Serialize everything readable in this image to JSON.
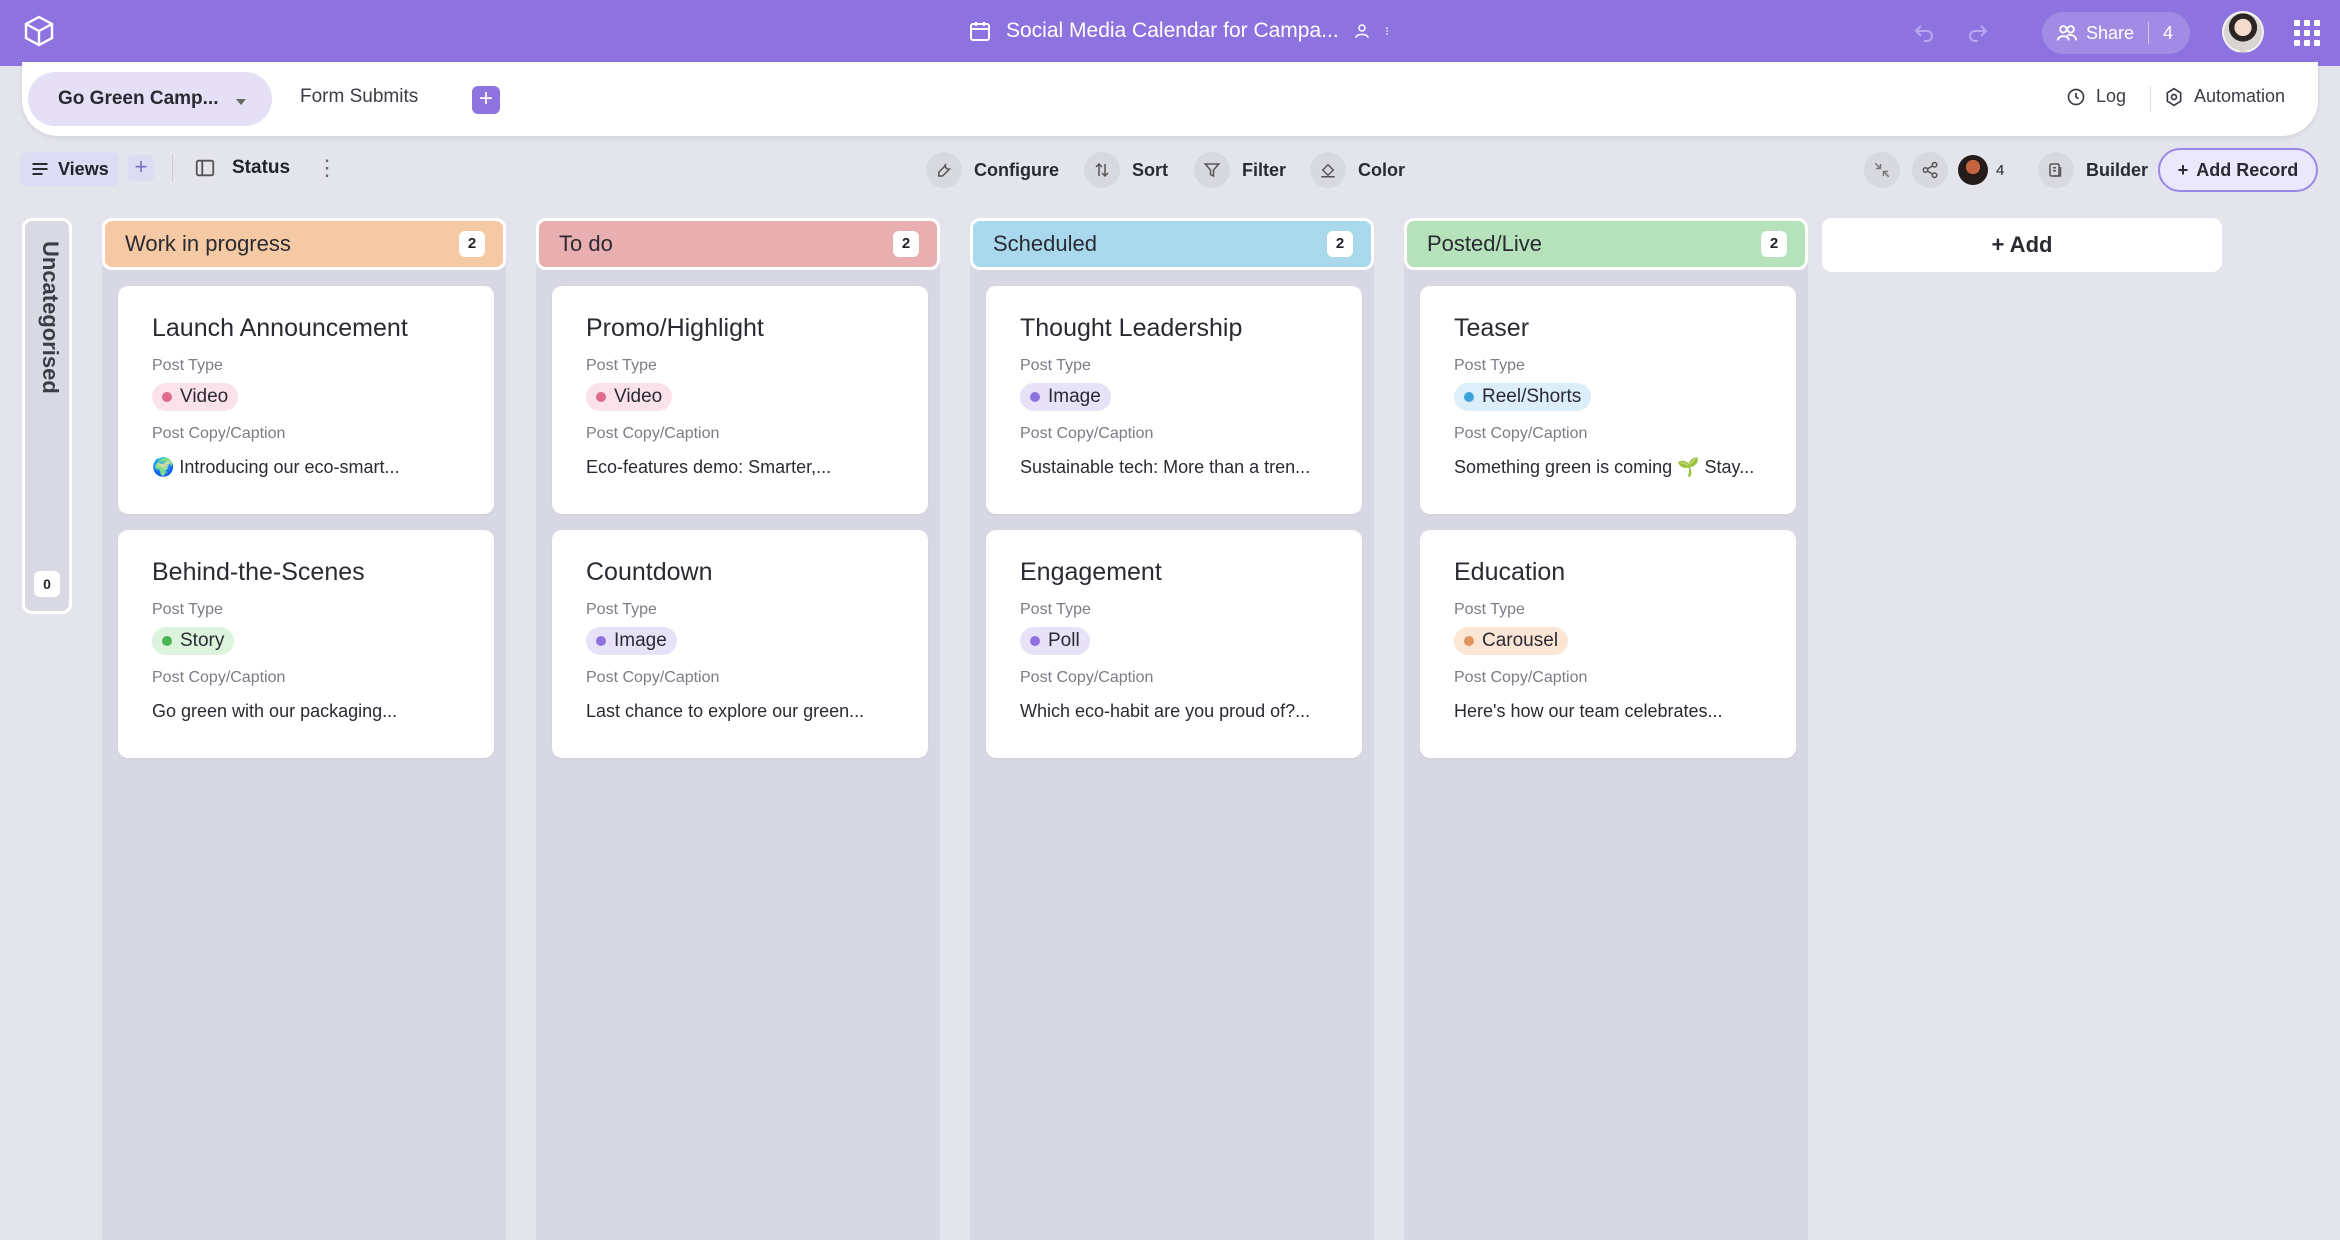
{
  "topbar": {
    "doc_title": "Social Media Calendar for Campa...",
    "share_label": "Share",
    "share_count": "4"
  },
  "tabs": {
    "active_label": "Go Green Camp...",
    "second_label": "Form Submits",
    "add_label": "+",
    "log_label": "Log",
    "automation_label": "Automation"
  },
  "toolbar": {
    "views_label": "Views",
    "views_add": "+",
    "status_label": "Status",
    "configure_label": "Configure",
    "sort_label": "Sort",
    "filter_label": "Filter",
    "color_label": "Color",
    "collab_count": "4",
    "builder_label": "Builder",
    "add_record_label": "Add Record"
  },
  "board": {
    "uncategorised_label": "Uncategorised",
    "uncategorised_count": "0",
    "add_column_label": "+ Add",
    "field_type_label": "Post Type",
    "field_caption_label": "Post Copy/Caption",
    "columns": [
      {
        "title": "Work in progress",
        "count": "2",
        "color": "#f5c9a3",
        "cards": [
          {
            "title": "Launch Announcement",
            "tag": "Video",
            "tag_bg": "#fbe2ea",
            "tag_dot": "#e06a8c",
            "caption": "🌍 Introducing our eco-smart..."
          },
          {
            "title": "Behind-the-Scenes",
            "tag": "Story",
            "tag_bg": "#dcf3dd",
            "tag_dot": "#49b557",
            "caption": "Go green with our packaging..."
          }
        ]
      },
      {
        "title": "To do",
        "count": "2",
        "color": "#e9afb0",
        "cards": [
          {
            "title": "Promo/Highlight",
            "tag": "Video",
            "tag_bg": "#fbe2ea",
            "tag_dot": "#e06a8c",
            "caption": "Eco-features demo: Smarter,..."
          },
          {
            "title": "Countdown",
            "tag": "Image",
            "tag_bg": "#e7e2f7",
            "tag_dot": "#8e72df",
            "caption": "Last chance to explore our green..."
          }
        ]
      },
      {
        "title": "Scheduled",
        "count": "2",
        "color": "#a9d8ec",
        "cards": [
          {
            "title": "Thought Leadership",
            "tag": "Image",
            "tag_bg": "#e7e2f7",
            "tag_dot": "#8e72df",
            "caption": "Sustainable tech: More than a tren..."
          },
          {
            "title": "Engagement",
            "tag": "Poll",
            "tag_bg": "#e7e2f7",
            "tag_dot": "#8e72df",
            "caption": "Which eco-habit are you proud of?..."
          }
        ]
      },
      {
        "title": "Posted/Live",
        "count": "2",
        "color": "#b5e1bb",
        "cards": [
          {
            "title": "Teaser",
            "tag": "Reel/Shorts",
            "tag_bg": "#dbeefa",
            "tag_dot": "#3ea3d8",
            "caption": "Something green is coming 🌱 Stay..."
          },
          {
            "title": "Education",
            "tag": "Carousel",
            "tag_bg": "#fbe6d6",
            "tag_dot": "#e3955e",
            "caption": "Here's how our team celebrates..."
          }
        ]
      }
    ]
  }
}
